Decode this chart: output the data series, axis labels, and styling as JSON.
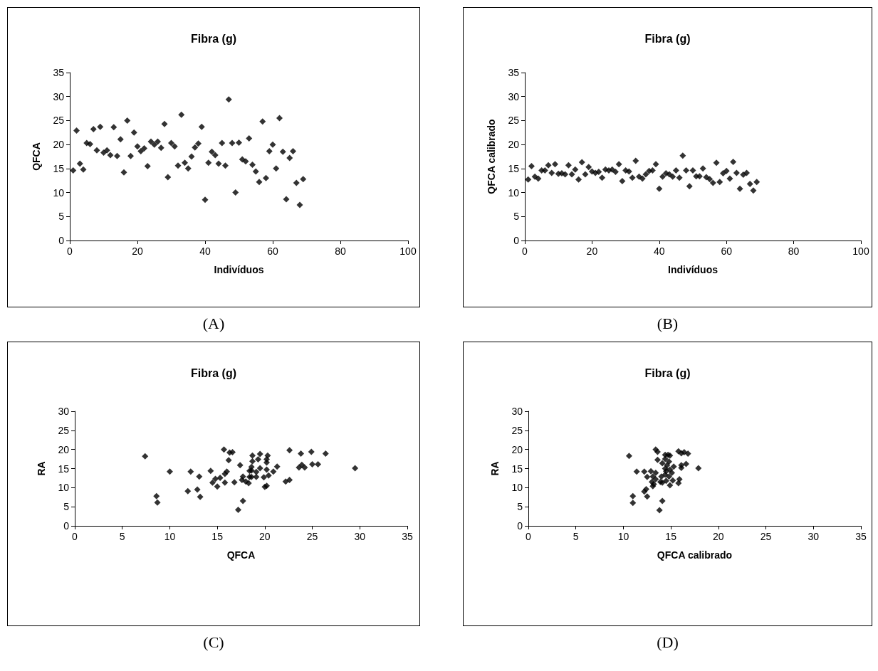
{
  "chart_data": [
    {
      "type": "scatter",
      "title": "Fibra (g)",
      "xlabel": "Indivíduos",
      "ylabel": "QFCA",
      "annotations": [
        "(A)"
      ],
      "marker": "diamond",
      "grid": false,
      "color": "#000000",
      "xlim": [
        0,
        100
      ],
      "xticks": [
        0,
        20,
        40,
        60,
        80,
        100
      ],
      "ylim": [
        0,
        35
      ],
      "yticks": [
        0,
        5,
        10,
        15,
        20,
        25,
        30,
        35
      ],
      "x": [
        1,
        2,
        3,
        4,
        5,
        6,
        7,
        8,
        9,
        10,
        11,
        12,
        13,
        14,
        15,
        16,
        17,
        18,
        19,
        20,
        21,
        22,
        23,
        24,
        25,
        26,
        27,
        28,
        29,
        30,
        31,
        32,
        33,
        34,
        35,
        36,
        37,
        38,
        39,
        40,
        41,
        42,
        43,
        44,
        45,
        46,
        47,
        48,
        49,
        50,
        51,
        52,
        53,
        54,
        55,
        56,
        57,
        58,
        59,
        60,
        61,
        62,
        63,
        64,
        65,
        66,
        67,
        68,
        69
      ],
      "values": [
        14.6,
        22.9,
        16.0,
        14.8,
        20.3,
        20.1,
        23.2,
        18.8,
        23.7,
        18.3,
        18.8,
        17.8,
        23.6,
        17.6,
        21.1,
        14.2,
        25.0,
        17.6,
        22.5,
        19.6,
        18.6,
        19.2,
        15.5,
        20.6,
        20.0,
        20.6,
        19.3,
        24.3,
        13.2,
        20.3,
        19.6,
        15.6,
        26.2,
        16.2,
        15.0,
        17.5,
        19.4,
        20.2,
        23.7,
        8.5,
        16.2,
        18.5,
        17.8,
        16.0,
        20.3,
        15.6,
        29.4,
        20.3,
        10.0,
        20.4,
        16.9,
        16.5,
        21.3,
        15.8,
        14.4,
        12.2,
        24.8,
        13.0,
        18.6,
        20.0,
        15.0,
        25.5,
        18.5,
        8.6,
        17.2,
        18.6,
        12.0,
        7.4,
        12.8
      ]
    },
    {
      "type": "scatter",
      "title": "Fibra (g)",
      "xlabel": "Indivíduos",
      "ylabel": "QFCA calibrado",
      "annotations": [
        "(B)"
      ],
      "marker": "diamond",
      "grid": false,
      "color": "#000000",
      "xlim": [
        0,
        100
      ],
      "xticks": [
        0,
        20,
        40,
        60,
        80,
        100
      ],
      "ylim": [
        0,
        35
      ],
      "yticks": [
        0,
        5,
        10,
        15,
        20,
        25,
        30,
        35
      ],
      "x": [
        1,
        2,
        3,
        4,
        5,
        6,
        7,
        8,
        9,
        10,
        11,
        12,
        13,
        14,
        15,
        16,
        17,
        18,
        19,
        20,
        21,
        22,
        23,
        24,
        25,
        26,
        27,
        28,
        29,
        30,
        31,
        32,
        33,
        34,
        35,
        36,
        37,
        38,
        39,
        40,
        41,
        42,
        43,
        44,
        45,
        46,
        47,
        48,
        49,
        50,
        51,
        52,
        53,
        54,
        55,
        56,
        57,
        58,
        59,
        60,
        61,
        62,
        63,
        64,
        65,
        66,
        67,
        68,
        69
      ],
      "values": [
        12.7,
        15.5,
        13.3,
        12.9,
        14.6,
        14.6,
        15.7,
        14.1,
        15.9,
        13.9,
        14.0,
        13.8,
        15.7,
        13.8,
        14.8,
        12.7,
        16.3,
        13.8,
        15.3,
        14.4,
        14.1,
        14.3,
        13.1,
        14.8,
        14.6,
        14.8,
        14.3,
        15.9,
        12.4,
        14.6,
        14.4,
        13.1,
        16.6,
        13.3,
        12.9,
        13.8,
        14.5,
        14.6,
        15.9,
        10.8,
        13.3,
        14.0,
        13.8,
        13.3,
        14.6,
        13.1,
        17.7,
        14.6,
        11.3,
        14.6,
        13.4,
        13.4,
        15.0,
        13.2,
        12.8,
        12.0,
        16.2,
        12.2,
        14.0,
        14.5,
        12.9,
        16.4,
        14.1,
        10.8,
        13.7,
        14.1,
        11.8,
        10.4,
        12.2
      ]
    },
    {
      "type": "scatter",
      "title": "Fibra (g)",
      "xlabel": "QFCA",
      "ylabel": "RA",
      "annotations": [
        "(C)"
      ],
      "marker": "diamond",
      "grid": false,
      "color": "#000000",
      "xlim": [
        0,
        35
      ],
      "xticks": [
        0,
        5,
        10,
        15,
        20,
        25,
        30,
        35
      ],
      "ylim": [
        0,
        30
      ],
      "yticks": [
        0,
        5,
        10,
        15,
        20,
        25,
        30
      ],
      "x": [
        7.4,
        8.6,
        8.7,
        10.0,
        11.9,
        12.2,
        12.9,
        13.1,
        13.2,
        14.3,
        14.5,
        14.8,
        15.0,
        15.3,
        15.7,
        15.8,
        15.8,
        16.0,
        16.2,
        16.3,
        16.6,
        16.8,
        17.4,
        17.7,
        17.7,
        17.6,
        18.0,
        18.3,
        17.2,
        18.6,
        18.7,
        18.7,
        18.6,
        19.5,
        20.3,
        19.3,
        20.2,
        20.2,
        18.6,
        19.5,
        18.4,
        20.2,
        20.9,
        21.3,
        19.1,
        18.4,
        19.1,
        19.9,
        20.4,
        20.2,
        20.0,
        22.6,
        23.8,
        24.9,
        26.4,
        23.9,
        23.6,
        24.2,
        25.0,
        25.6,
        22.2,
        22.6,
        29.5
      ],
      "values": [
        18.2,
        7.8,
        6.1,
        14.2,
        9.1,
        14.2,
        9.5,
        12.9,
        7.6,
        14.4,
        11.3,
        12.3,
        10.3,
        12.6,
        20.0,
        11.3,
        13.6,
        14.2,
        17.2,
        19.2,
        19.3,
        11.4,
        15.9,
        12.9,
        6.5,
        12.0,
        11.6,
        11.2,
        4.2,
        14.5,
        18.4,
        16.9,
        12.8,
        18.8,
        18.4,
        17.4,
        17.4,
        16.6,
        15.4,
        15.1,
        14.4,
        14.7,
        14.2,
        15.5,
        14.1,
        12.8,
        12.8,
        12.7,
        13.2,
        10.5,
        10.2,
        19.8,
        18.9,
        19.4,
        18.9,
        16.0,
        15.3,
        15.3,
        16.1,
        16.1,
        11.6,
        12.0,
        15.1
      ]
    },
    {
      "type": "scatter",
      "title": "Fibra (g)",
      "xlabel": "QFCA calibrado",
      "ylabel": "RA",
      "annotations": [
        "(D)"
      ],
      "marker": "diamond",
      "grid": false,
      "color": "#000000",
      "xlim": [
        0,
        35
      ],
      "xticks": [
        0,
        5,
        10,
        15,
        20,
        25,
        30,
        35
      ],
      "ylim": [
        0,
        30
      ],
      "yticks": [
        0,
        5,
        10,
        15,
        20,
        25,
        30
      ],
      "x": [
        10.6,
        11.0,
        11.0,
        11.4,
        12.2,
        12.2,
        12.4,
        12.5,
        12.9,
        12.5,
        13.4,
        13.6,
        13.6,
        13.4,
        13.1,
        13.0,
        13.1,
        13.4,
        14.1,
        13.8,
        14.1,
        14.0,
        14.4,
        14.7,
        14.9,
        14.4,
        14.8,
        14.1,
        14.6,
        15.3,
        14.4,
        14.9,
        14.5,
        15.1,
        14.4,
        14.8,
        14.5,
        14.9,
        15.8,
        16.1,
        16.4,
        16.8,
        16.1,
        16.6,
        16.1,
        15.9,
        15.8,
        17.9,
        15.2,
        13.9,
        13.2
      ],
      "values": [
        18.3,
        7.8,
        6.0,
        14.2,
        14.2,
        9.0,
        9.6,
        7.7,
        14.3,
        12.8,
        20.0,
        19.4,
        17.3,
        13.9,
        12.9,
        11.5,
        10.4,
        12.2,
        6.5,
        4.1,
        11.3,
        12.9,
        18.6,
        18.6,
        18.4,
        17.5,
        16.8,
        16.4,
        15.9,
        15.5,
        15.0,
        14.7,
        14.3,
        13.9,
        13.4,
        12.9,
        11.8,
        10.6,
        19.5,
        19.0,
        19.3,
        18.9,
        15.9,
        16.2,
        15.2,
        12.2,
        11.2,
        15.1,
        11.9,
        11.5,
        10.9
      ]
    }
  ]
}
